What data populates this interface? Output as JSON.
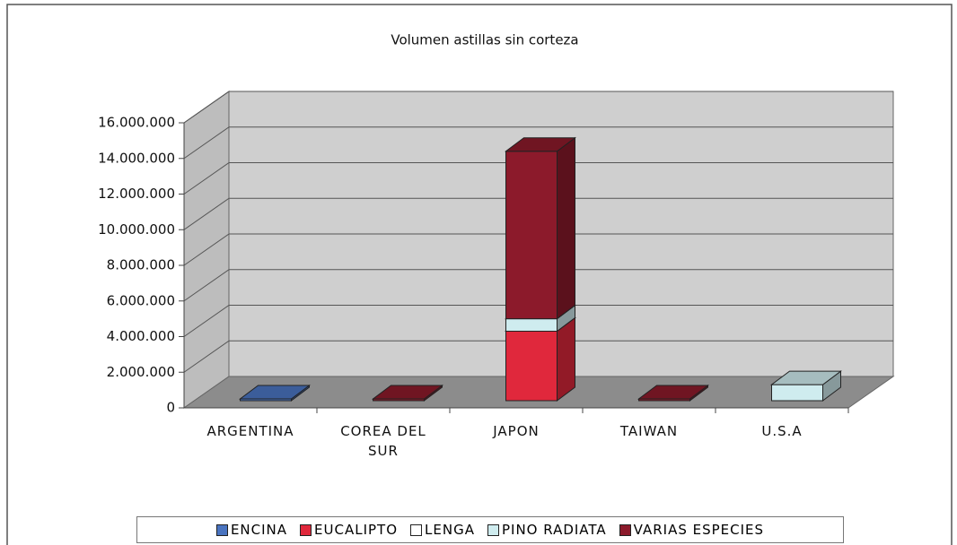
{
  "chart_data": {
    "type": "bar",
    "stacked": true,
    "title": "Volumen astillas sin corteza",
    "categories": [
      "ARGENTINA",
      "COREA DEL SUR",
      "JAPON",
      "TAIWAN",
      "U.S.A"
    ],
    "series": [
      {
        "name": "ENCINA",
        "color": "#4a74c0",
        "values": [
          100000,
          0,
          0,
          0,
          0
        ]
      },
      {
        "name": "EUCALIPTO",
        "color": "#e0283c",
        "values": [
          0,
          0,
          3900000,
          0,
          0
        ]
      },
      {
        "name": "LENGA",
        "color": "#ffffff",
        "values": [
          0,
          0,
          0,
          0,
          0
        ]
      },
      {
        "name": "PINO RADIATA",
        "color": "#cfecef",
        "values": [
          0,
          0,
          700000,
          0,
          900000
        ]
      },
      {
        "name": "VARIAS ESPECIES",
        "color": "#8c1a2b",
        "values": [
          0,
          100000,
          9400000,
          100000,
          0
        ]
      }
    ],
    "ylim": [
      0,
      16000000
    ],
    "yticks": [
      0,
      {
        "value": 2000000,
        "label": "2.000.000"
      },
      {
        "value": 4000000,
        "label": "4.000.000"
      },
      {
        "value": 6000000,
        "label": "6.000.000"
      },
      {
        "value": 8000000,
        "label": "8.000.000"
      },
      {
        "value": 10000000,
        "label": "10.000.000"
      },
      {
        "value": 12000000,
        "label": "12.000.000"
      },
      {
        "value": 14000000,
        "label": "14.000.000"
      },
      {
        "value": 16000000,
        "label": "16.000.000"
      }
    ],
    "grid": true,
    "legend": "bottom"
  }
}
